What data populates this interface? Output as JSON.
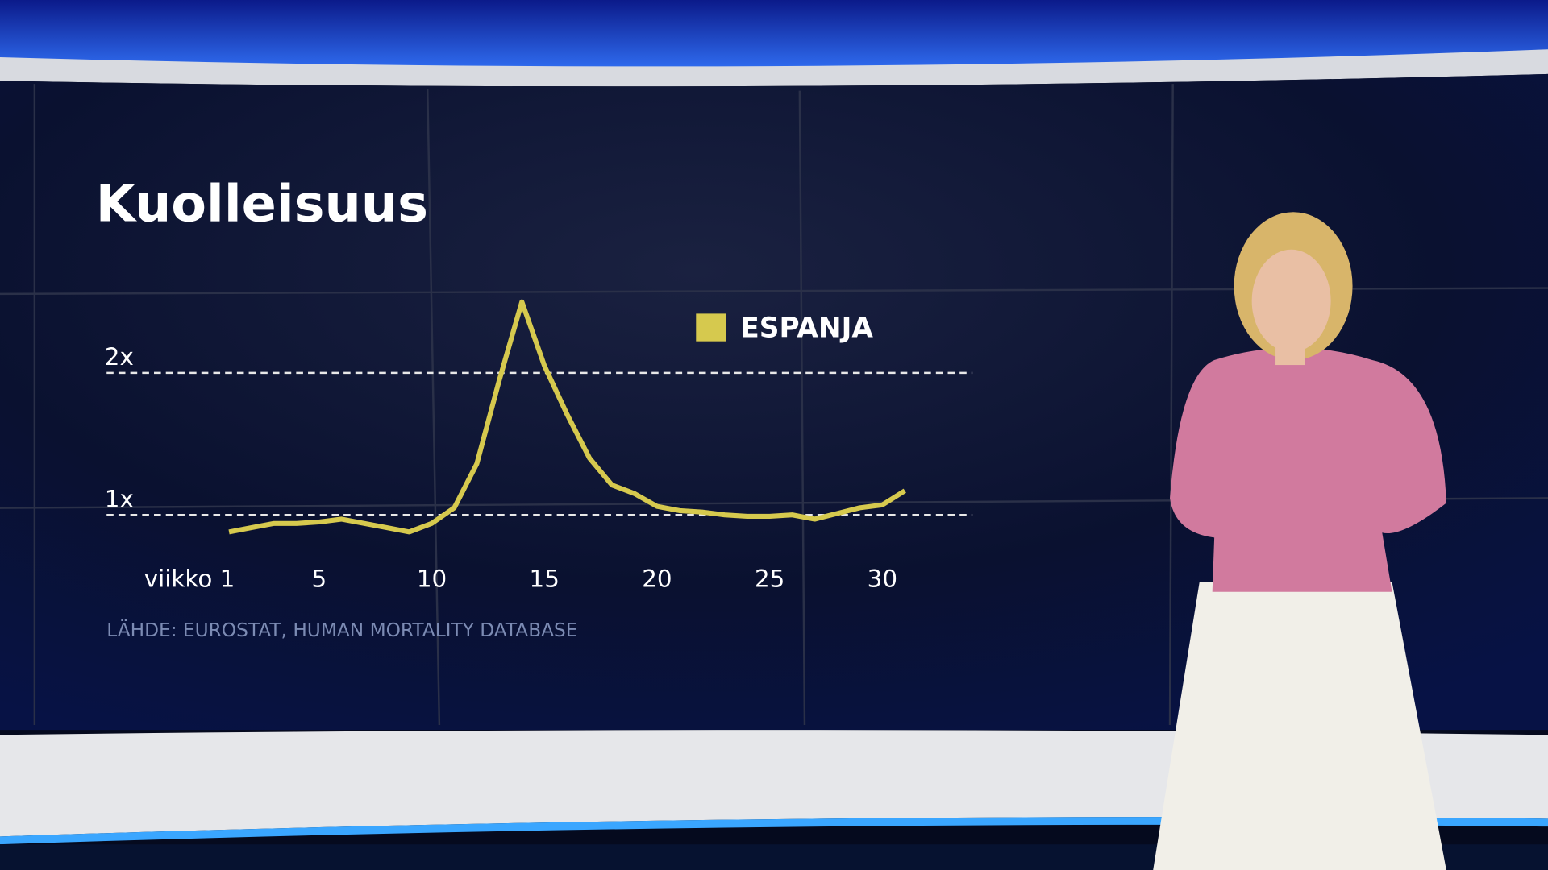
{
  "chart_data": {
    "type": "line",
    "title": "Kuolleisuus",
    "source": "LÄHDE:  EUROSTAT, HUMAN MORTALITY DATABASE",
    "x": [
      1,
      2,
      3,
      4,
      5,
      6,
      7,
      8,
      9,
      10,
      11,
      12,
      13,
      14,
      15,
      16,
      17,
      18,
      19,
      20,
      21,
      22,
      23,
      24,
      25,
      26,
      27,
      28,
      29,
      30,
      31
    ],
    "series": [
      {
        "name": "ESPANJA",
        "color": "#d6c94e",
        "values": [
          0.88,
          0.91,
          0.94,
          0.94,
          0.95,
          0.97,
          0.94,
          0.91,
          0.88,
          0.94,
          1.05,
          1.36,
          1.95,
          2.5,
          2.05,
          1.71,
          1.4,
          1.21,
          1.15,
          1.06,
          1.03,
          1.02,
          1.0,
          0.99,
          0.99,
          1.0,
          0.97,
          1.01,
          1.05,
          1.07,
          1.17
        ]
      }
    ],
    "xlim": [
      -3.6,
      34
    ],
    "xticks": [
      {
        "value": 1,
        "label": "viikko 1"
      },
      5,
      10,
      15,
      20,
      25,
      30
    ],
    "ylim": [
      0.75,
      2.6
    ],
    "yticks": [
      {
        "value": 1,
        "label": "1x"
      },
      {
        "value": 2,
        "label": "2x"
      }
    ],
    "grid": true,
    "legend": "top-right"
  }
}
